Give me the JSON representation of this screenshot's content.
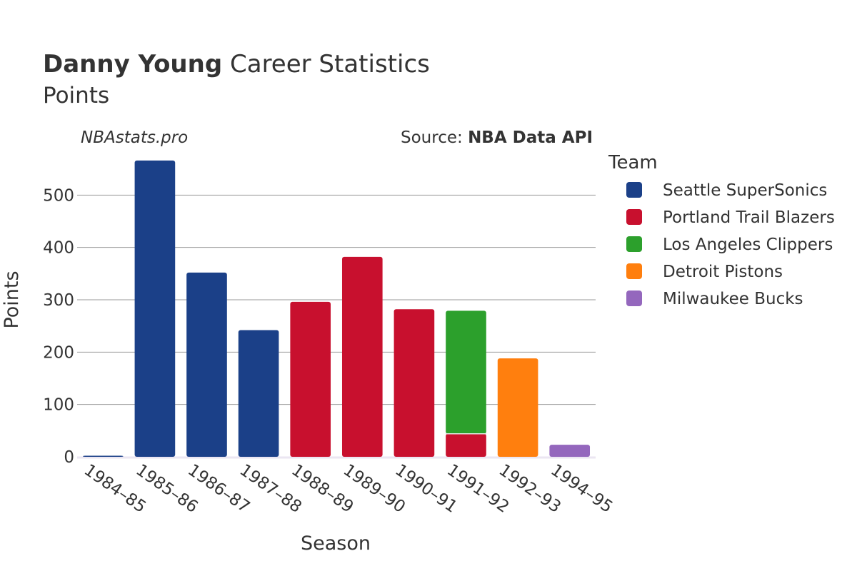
{
  "title": {
    "player": "Danny Young",
    "rest": " Career Statistics",
    "subtitle": "Points"
  },
  "watermark": "NBAstats.pro",
  "source": {
    "prefix": "Source: ",
    "name": "NBA Data API"
  },
  "legend": {
    "title": "Team",
    "position": "right",
    "items": [
      {
        "name": "Seattle SuperSonics",
        "color": "#1b4088"
      },
      {
        "name": "Portland Trail Blazers",
        "color": "#c8102e"
      },
      {
        "name": "Los Angeles Clippers",
        "color": "#2ca02c"
      },
      {
        "name": "Detroit Pistons",
        "color": "#ff7f0e"
      },
      {
        "name": "Milwaukee Bucks",
        "color": "#9467bd"
      }
    ]
  },
  "chart_data": {
    "type": "bar",
    "stacked": true,
    "xlabel": "Season",
    "ylabel": "Points",
    "ylim": [
      0,
      570
    ],
    "yticks": [
      0,
      100,
      200,
      300,
      400,
      500
    ],
    "grid": true,
    "categories": [
      "1984–85",
      "1985–86",
      "1986–87",
      "1987–88",
      "1988–89",
      "1989–90",
      "1990–91",
      "1991–92",
      "1992–93",
      "1994–95"
    ],
    "series": [
      {
        "name": "Seattle SuperSonics",
        "color": "#1b4088",
        "values": [
          2,
          566,
          352,
          242,
          null,
          null,
          null,
          null,
          null,
          null
        ]
      },
      {
        "name": "Portland Trail Blazers",
        "color": "#c8102e",
        "values": [
          null,
          null,
          null,
          null,
          296,
          382,
          282,
          44,
          null,
          null
        ]
      },
      {
        "name": "Los Angeles Clippers",
        "color": "#2ca02c",
        "values": [
          null,
          null,
          null,
          null,
          null,
          null,
          null,
          235,
          null,
          null
        ]
      },
      {
        "name": "Detroit Pistons",
        "color": "#ff7f0e",
        "values": [
          null,
          null,
          null,
          null,
          null,
          null,
          null,
          null,
          188,
          null
        ]
      },
      {
        "name": "Milwaukee Bucks",
        "color": "#9467bd",
        "values": [
          null,
          null,
          null,
          null,
          null,
          null,
          null,
          null,
          null,
          23
        ]
      }
    ]
  }
}
